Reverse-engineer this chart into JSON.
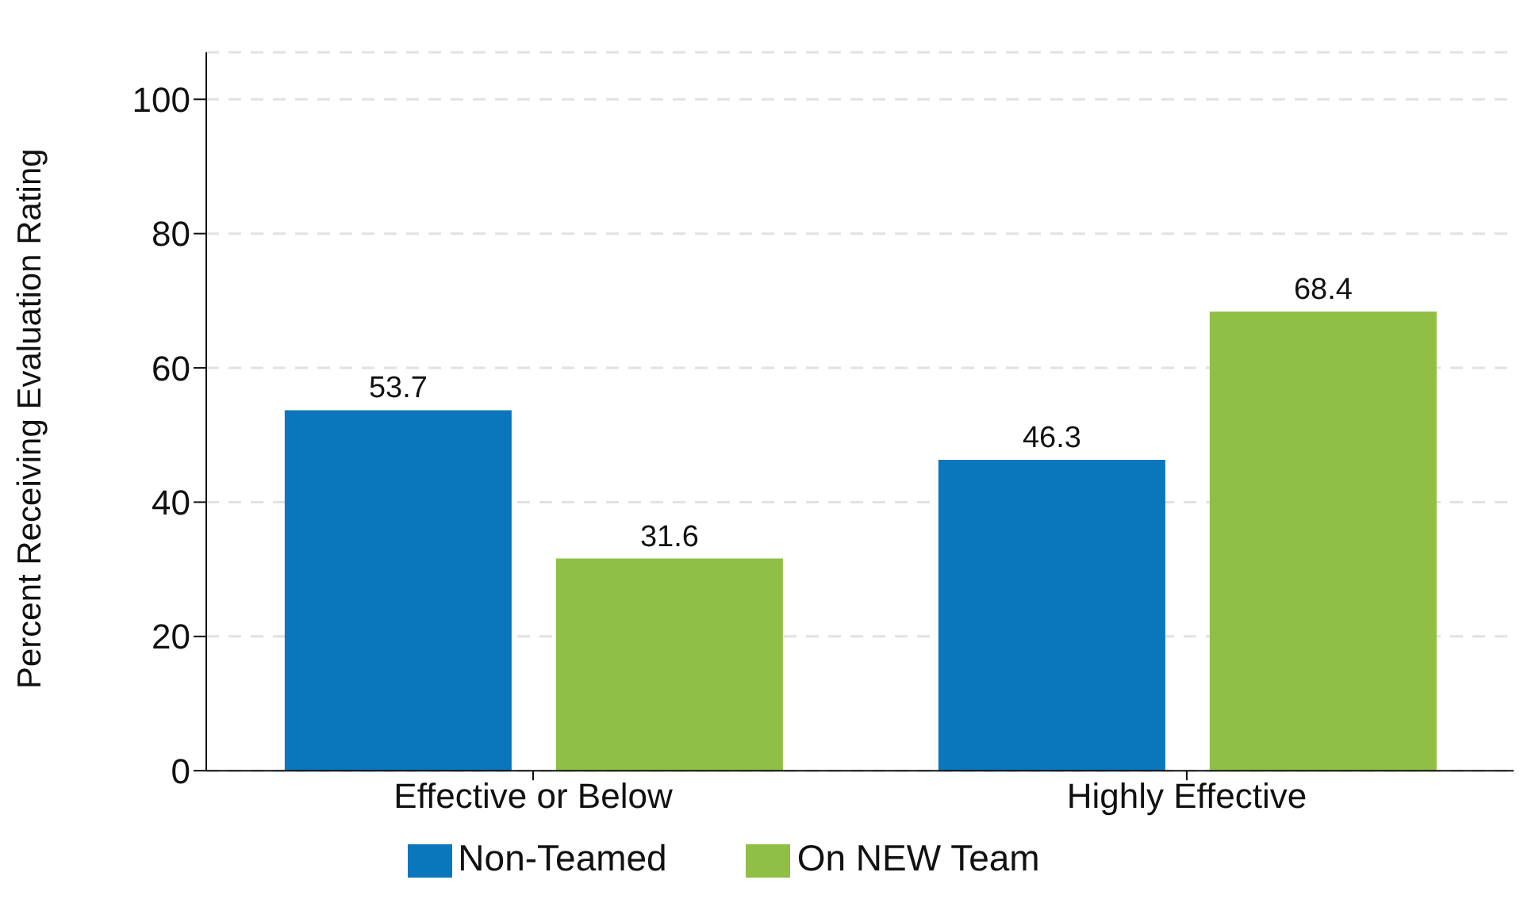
{
  "chart_data": {
    "type": "bar",
    "ylabel": "Percent Receiving Evaluation Rating",
    "categories": [
      "Effective or Below",
      "Highly Effective"
    ],
    "series": [
      {
        "name": "Non-Teamed",
        "color": "#0a77bd",
        "values": [
          53.7,
          46.3
        ]
      },
      {
        "name": "On NEW Team",
        "color": "#8fbf45",
        "values": [
          31.6,
          68.4
        ]
      }
    ],
    "ylim": [
      0,
      107
    ],
    "yticks": [
      0,
      20,
      40,
      60,
      80,
      100
    ],
    "grid": "y",
    "legend": "bottom",
    "data_labels": true
  }
}
